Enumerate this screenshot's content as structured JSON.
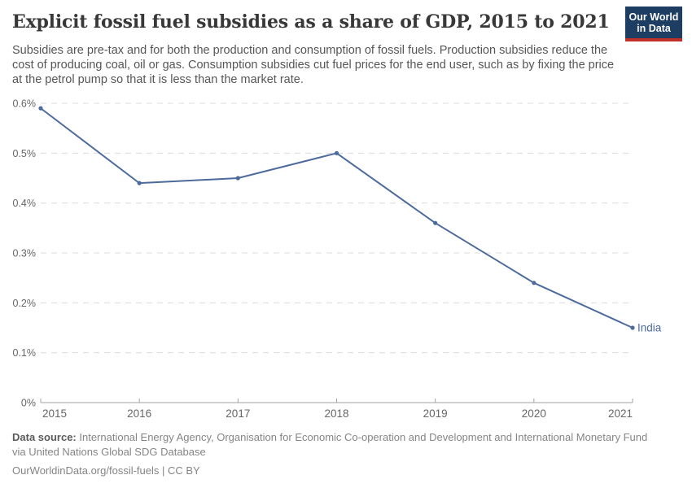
{
  "header": {
    "title": "Explicit fossil fuel subsidies as a share of GDP, 2015 to 2021",
    "subtitle": "Subsidies are pre-tax and for both the production and consumption of fossil fuels. Production subsidies reduce the cost of producing coal, oil or gas. Consumption subsidies cut fuel prices for the end user, such as by fixing the price at the petrol pump so that it is less than the market rate."
  },
  "logo": {
    "line1": "Our World",
    "line2": "in Data",
    "bg_color": "#1d3d63",
    "stripe_color": "#c0302b"
  },
  "chart_data": {
    "type": "line",
    "x": [
      2015,
      2016,
      2017,
      2018,
      2019,
      2020,
      2021
    ],
    "series": [
      {
        "name": "India",
        "values": [
          0.59,
          0.44,
          0.45,
          0.5,
          0.36,
          0.24,
          0.15
        ],
        "color": "#4c6a9c"
      }
    ],
    "title": "Explicit fossil fuel subsidies as a share of GDP, 2015 to 2021",
    "xlabel": "",
    "ylabel": "",
    "ylim": [
      0,
      0.6
    ],
    "y_ticks": [
      0,
      0.1,
      0.2,
      0.3,
      0.4,
      0.5,
      0.6
    ],
    "y_tick_suffix": "%",
    "grid": true,
    "grid_style": "dashed",
    "legend_position": "end-of-line-label",
    "end_label": "India",
    "colors": {
      "line": "#4c6a9c",
      "grid": "#dcdcdc",
      "axis": "#a3a3a3",
      "tick_text": "#666666"
    }
  },
  "footer": {
    "source_label": "Data source:",
    "source_text": " International Energy Agency, Organisation for Economic Co-operation and Development and International Monetary Fund via United Nations Global SDG Database",
    "attribution": "OurWorldinData.org/fossil-fuels | CC BY"
  }
}
